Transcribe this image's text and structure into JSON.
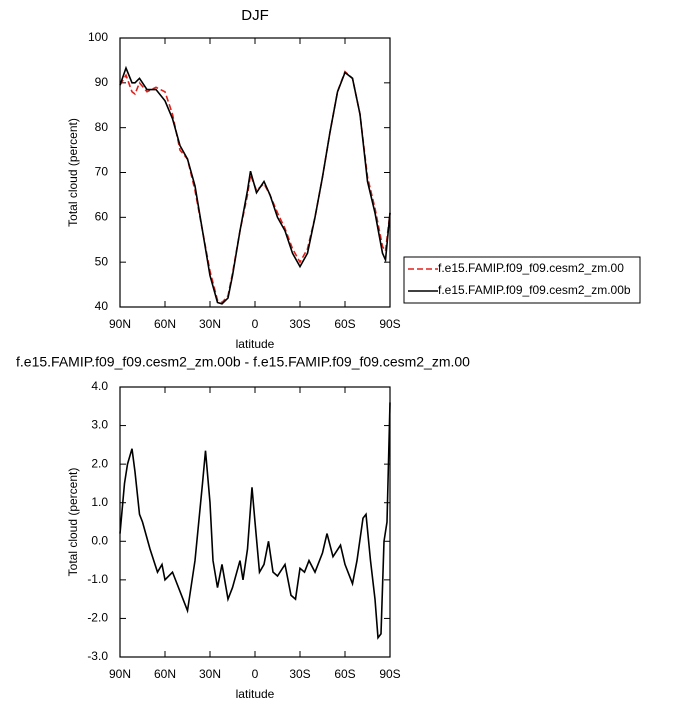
{
  "chart_data": [
    {
      "type": "line",
      "title": "DJF",
      "xlabel": "latitude",
      "ylabel": "Total cloud (percent)",
      "x": [
        90,
        86,
        82,
        80,
        77,
        72,
        66,
        60,
        55,
        50,
        45,
        40,
        35,
        30,
        25,
        22,
        18,
        15,
        10,
        5,
        3,
        -1,
        -6,
        -10,
        -15,
        -20,
        -25,
        -30,
        -35,
        -40,
        -45,
        -50,
        -55,
        -60,
        -65,
        -70,
        -75,
        -80,
        -85,
        -87,
        -90
      ],
      "series": [
        {
          "name": "f.e15.FAMIP.f09_f09.cesm2_zm.00",
          "color": "#e0201b",
          "dashed": true,
          "values": [
            89.5,
            91.7,
            88,
            87.5,
            90,
            88,
            89,
            88,
            83,
            75,
            73,
            66,
            57,
            48,
            41.5,
            41,
            42.5,
            47.5,
            57,
            65,
            69.5,
            66,
            67.5,
            65,
            61,
            57.5,
            53,
            50,
            53,
            60,
            69,
            79,
            88,
            92.5,
            91,
            83,
            69,
            62,
            53.5,
            52.5,
            61
          ]
        },
        {
          "name": "f.e15.FAMIP.f09_f09.cesm2_zm.00b",
          "color": "#000000",
          "dashed": false,
          "values": [
            89.5,
            93.3,
            90,
            90,
            91,
            88.5,
            88.5,
            86,
            82,
            76,
            73,
            67,
            57,
            47,
            41,
            40.7,
            42,
            47,
            57,
            66,
            70.3,
            65.5,
            68,
            65,
            60,
            57,
            52,
            49,
            52,
            60,
            69,
            79,
            88,
            92.3,
            91,
            83,
            68,
            61,
            52,
            50.5,
            61
          ]
        }
      ],
      "xlim": [
        90,
        -90
      ],
      "xticks": [
        {
          "value": 90,
          "label": "90N"
        },
        {
          "value": 60,
          "label": "60N"
        },
        {
          "value": 30,
          "label": "30N"
        },
        0,
        {
          "value": -30,
          "label": "30S"
        },
        {
          "value": -60,
          "label": "60S"
        },
        {
          "value": -90,
          "label": "90S"
        }
      ],
      "ylim": [
        40,
        100
      ],
      "yticks": [
        40,
        50,
        60,
        70,
        80,
        90,
        100
      ],
      "legend": "right"
    },
    {
      "type": "line",
      "title": "f.e15.FAMIP.f09_f09.cesm2_zm.00b - f.e15.FAMIP.f09_f09.cesm2_zm.00",
      "xlabel": "latitude",
      "ylabel": "Total cloud (percent)",
      "x": [
        90,
        87,
        85,
        82,
        80,
        77,
        75,
        70,
        65,
        62,
        60,
        55,
        50,
        45,
        40,
        35,
        33,
        30,
        28,
        25,
        22,
        18,
        15,
        10,
        8,
        5,
        2,
        0,
        -3,
        -6,
        -9,
        -12,
        -15,
        -20,
        -24,
        -27,
        -30,
        -33,
        -36,
        -40,
        -45,
        -48,
        -52,
        -57,
        -60,
        -65,
        -68,
        -72,
        -74,
        -77,
        -80,
        -82,
        -84,
        -86,
        -88,
        -90
      ],
      "series": [
        {
          "color": "#000000",
          "dashed": false,
          "values": [
            0.2,
            1.5,
            2.0,
            2.4,
            1.8,
            0.7,
            0.5,
            -0.2,
            -0.8,
            -0.6,
            -1.0,
            -0.8,
            -1.3,
            -1.8,
            -0.5,
            1.5,
            2.35,
            1.0,
            -0.5,
            -1.2,
            -0.6,
            -1.5,
            -1.2,
            -0.5,
            -1.0,
            -0.2,
            1.4,
            0.5,
            -0.8,
            -0.6,
            0.0,
            -0.8,
            -0.9,
            -0.6,
            -1.4,
            -1.5,
            -0.7,
            -0.8,
            -0.5,
            -0.8,
            -0.3,
            0.2,
            -0.4,
            -0.1,
            -0.6,
            -1.1,
            -0.5,
            0.6,
            0.7,
            -0.5,
            -1.5,
            -2.5,
            -2.4,
            0.0,
            0.5,
            3.6
          ]
        }
      ],
      "xlim": [
        90,
        -90
      ],
      "xticks": [
        {
          "value": 90,
          "label": "90N"
        },
        {
          "value": 60,
          "label": "60N"
        },
        {
          "value": 30,
          "label": "30N"
        },
        0,
        {
          "value": -30,
          "label": "30S"
        },
        {
          "value": -60,
          "label": "60S"
        },
        {
          "value": -90,
          "label": "90S"
        }
      ],
      "ylim": [
        -3,
        4
      ],
      "yticks": [
        {
          "value": -3,
          "label": "-3.0"
        },
        {
          "value": -2,
          "label": "-2.0"
        },
        {
          "value": -1,
          "label": "-1.0"
        },
        {
          "value": 0,
          "label": "0.0"
        },
        {
          "value": 1,
          "label": "1.0"
        },
        {
          "value": 2,
          "label": "2.0"
        },
        {
          "value": 3,
          "label": "3.0"
        },
        {
          "value": 4,
          "label": "4.0"
        }
      ]
    }
  ]
}
